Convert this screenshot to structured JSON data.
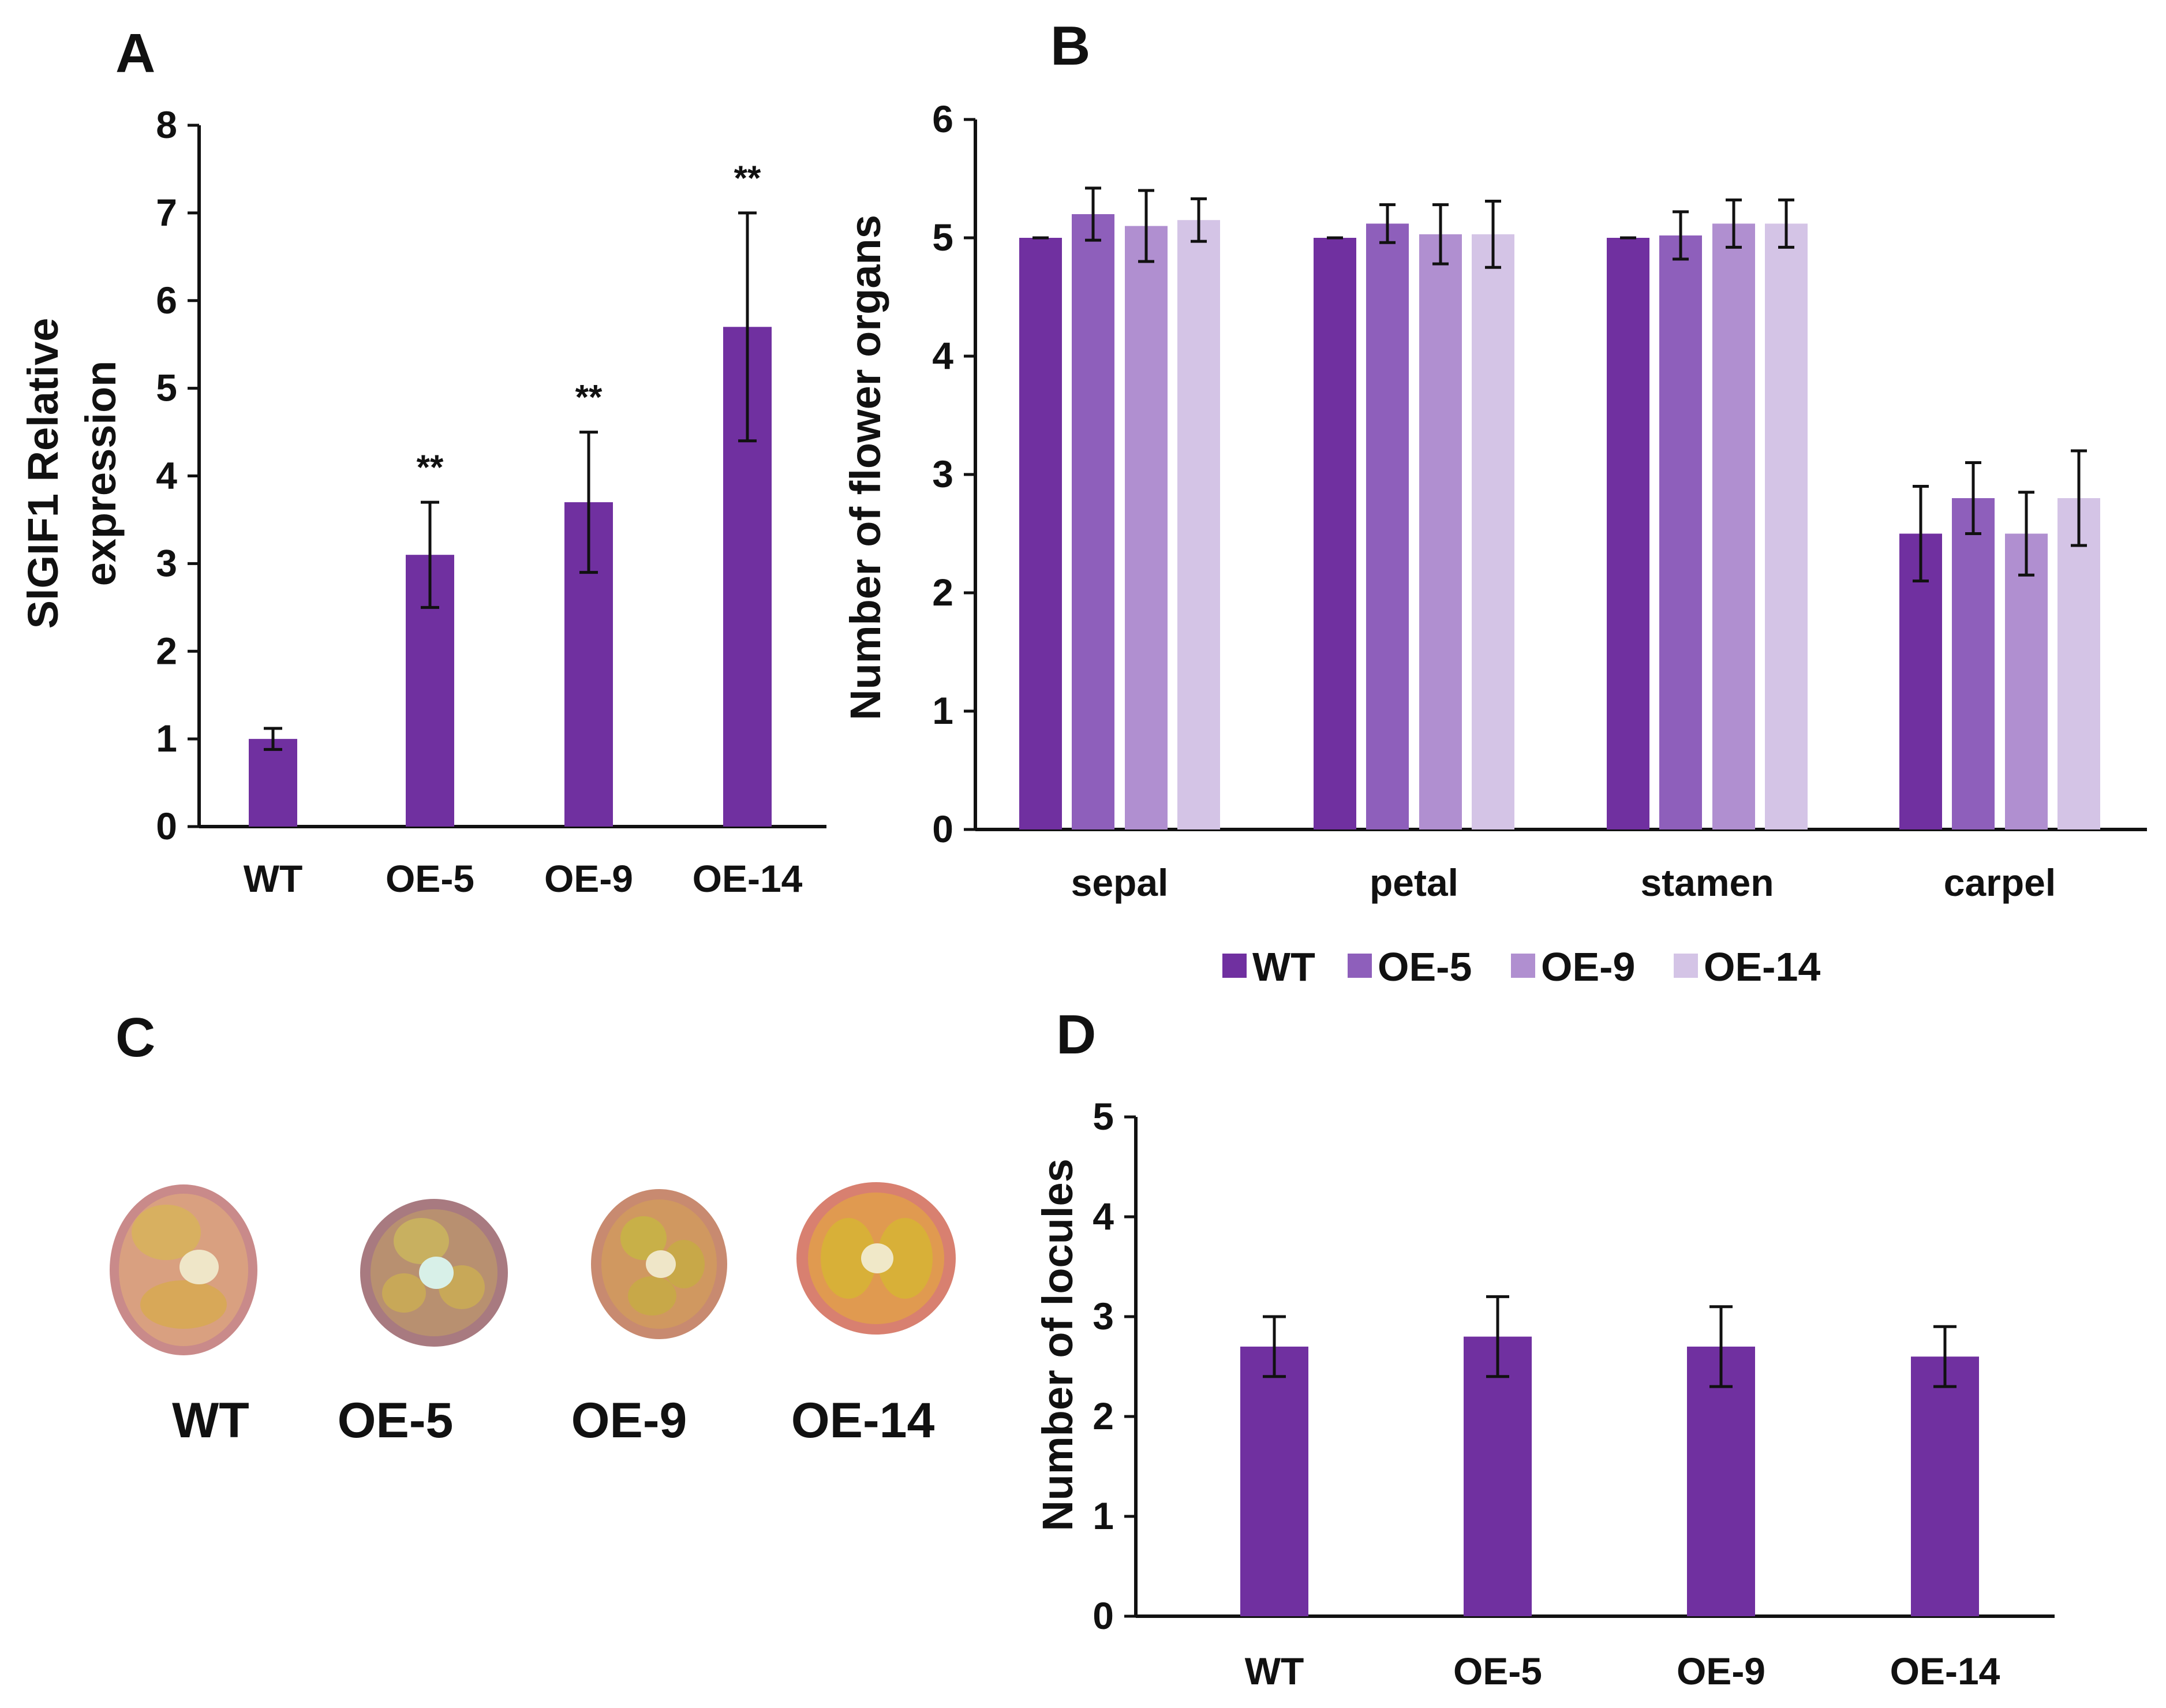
{
  "colors": {
    "axis": "#111111",
    "WT": "#7030a0",
    "OE-5": "#8e5fbb",
    "OE-9": "#b08fd0",
    "OE-14": "#d4c4e6"
  },
  "panels": {
    "A": {
      "letter": "A"
    },
    "B": {
      "letter": "B"
    },
    "C": {
      "letter": "C"
    },
    "D": {
      "letter": "D"
    }
  },
  "legend": [
    "WT",
    "OE-5",
    "OE-9",
    "OE-14"
  ],
  "fruits": {
    "labels": [
      "WT",
      "OE-5",
      "OE-9",
      "OE-14"
    ],
    "description_icon": "tomato-cross-section"
  },
  "chart_data": [
    {
      "id": "A",
      "type": "bar",
      "ylabel_line1": "SlGIF1 Relative",
      "ylabel_line2": "expression",
      "categories": [
        "WT",
        "OE-5",
        "OE-9",
        "OE-14"
      ],
      "values": [
        1.0,
        3.1,
        3.7,
        5.7
      ],
      "errors": [
        0.12,
        0.6,
        0.8,
        1.3
      ],
      "significance": [
        "",
        "**",
        "**",
        "**"
      ],
      "ylim": [
        0,
        8
      ],
      "yticks": [
        0,
        1,
        2,
        3,
        4,
        5,
        6,
        7,
        8
      ]
    },
    {
      "id": "B",
      "type": "bar",
      "ylabel": "Number of flower organs",
      "categories": [
        "sepal",
        "petal",
        "stamen",
        "carpel"
      ],
      "series": [
        {
          "name": "WT",
          "values": [
            5.0,
            5.0,
            5.0,
            2.5
          ],
          "errors": [
            0.0,
            0.0,
            0.0,
            0.4
          ]
        },
        {
          "name": "OE-5",
          "values": [
            5.2,
            5.12,
            5.02,
            2.8
          ],
          "errors": [
            0.22,
            0.16,
            0.2,
            0.3
          ]
        },
        {
          "name": "OE-9",
          "values": [
            5.1,
            5.03,
            5.12,
            2.5
          ],
          "errors": [
            0.3,
            0.25,
            0.2,
            0.35
          ]
        },
        {
          "name": "OE-14",
          "values": [
            5.15,
            5.03,
            5.12,
            2.8
          ],
          "errors": [
            0.18,
            0.28,
            0.2,
            0.4
          ]
        }
      ],
      "ylim": [
        0,
        6
      ],
      "yticks": [
        0,
        1,
        2,
        3,
        4,
        5,
        6
      ],
      "legend_position": "bottom"
    },
    {
      "id": "D",
      "type": "bar",
      "ylabel": "Number of locules",
      "categories": [
        "WT",
        "OE-5",
        "OE-9",
        "OE-14"
      ],
      "values": [
        2.7,
        2.8,
        2.7,
        2.6
      ],
      "errors": [
        0.3,
        0.4,
        0.4,
        0.3
      ],
      "ylim": [
        0,
        5
      ],
      "yticks": [
        0,
        1,
        2,
        3,
        4,
        5
      ]
    }
  ]
}
